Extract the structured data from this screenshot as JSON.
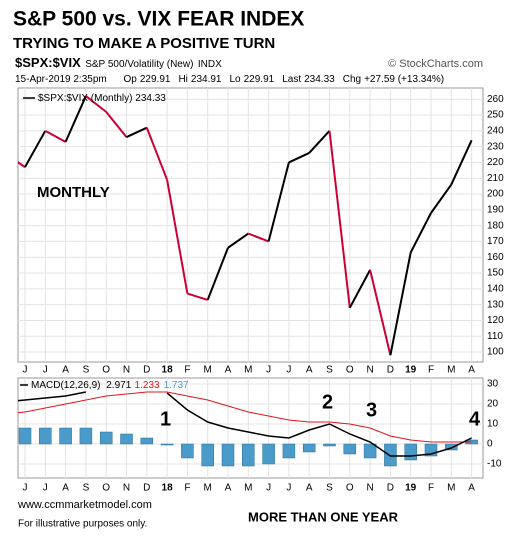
{
  "chart_data": {
    "type": "line",
    "title": "S&P 500 vs. VIX FEAR INDEX",
    "subtitle": "TRYING TO MAKE A POSITIVE TURN",
    "symbol": "$SPX:$VIX",
    "description": "S&P 500/Volatility (New)",
    "exchange": "INDX",
    "source": "© StockCharts.com",
    "date": "15-Apr-2019 2:35pm",
    "quote": [
      {
        "label": "Op",
        "value": "229.91"
      },
      {
        "label": "Hi",
        "value": "234.91"
      },
      {
        "label": "Lo",
        "value": "229.91"
      },
      {
        "label": "Last",
        "value": "234.33"
      },
      {
        "label": "Chg",
        "value": "+27.59 (+13.34%)"
      }
    ],
    "categories": [
      null,
      "J",
      "J",
      "A",
      "S",
      "O",
      "N",
      "D",
      "18",
      "F",
      "M",
      "A",
      "M",
      "J",
      "J",
      "A",
      "S",
      "O",
      "N",
      "D",
      "19",
      "F",
      "M",
      "A"
    ],
    "series": [
      {
        "name": "$SPX:$VIX (Monthly)",
        "legend_value": "234.33",
        "up_color": "#000000",
        "down_color": "#cc0033",
        "values": [
          226,
          217,
          240,
          233,
          262,
          252,
          236,
          242,
          209,
          137,
          133,
          166,
          175,
          170,
          220,
          226,
          240,
          128,
          152,
          98,
          163,
          188,
          206,
          234
        ]
      }
    ],
    "ylim": [
      93.7,
      267.1
    ],
    "yticks": [
      100,
      110,
      120,
      130,
      140,
      150,
      160,
      170,
      180,
      190,
      200,
      210,
      220,
      230,
      240,
      250,
      260
    ],
    "grid": true,
    "annotations": [
      "MONTHLY",
      "1",
      "2",
      "3",
      "4",
      "MORE THAN ONE YEAR"
    ],
    "footer": [
      "www.ccmmarketmodel.com",
      "For illustrative purposes only."
    ],
    "macd": {
      "type": "macd",
      "name": "MACD(12,26,9)",
      "ylim": [
        -17,
        33
      ],
      "yticks": [
        30,
        20,
        10,
        0,
        -10
      ],
      "series": [
        {
          "name": "MACD",
          "legend_value": "2.971",
          "color": "#000000",
          "values": [
            21,
            22,
            23,
            24,
            26,
            null,
            null,
            null,
            25.5,
            17,
            11,
            8,
            6,
            4,
            3,
            7,
            10,
            5,
            1,
            -6,
            -6,
            -5,
            -2,
            3
          ]
        },
        {
          "name": "Signal",
          "legend_value": "1.233",
          "color": "#e0141e",
          "values": [
            15,
            16,
            18,
            20,
            22,
            24,
            25,
            26,
            26,
            24,
            22,
            19,
            16,
            14,
            12,
            11,
            11,
            10,
            8,
            4,
            2,
            1,
            1,
            1
          ]
        },
        {
          "name": "Histogram",
          "legend_value": "1.737",
          "color": "#4a9bc9",
          "values": [
            null,
            8,
            8,
            8,
            8,
            6,
            5,
            3,
            -0.5,
            -7,
            -11,
            -11,
            -11,
            -10,
            -7,
            -4,
            -1,
            -5,
            -7,
            -11,
            -8,
            -6,
            -3,
            2
          ]
        }
      ]
    }
  }
}
